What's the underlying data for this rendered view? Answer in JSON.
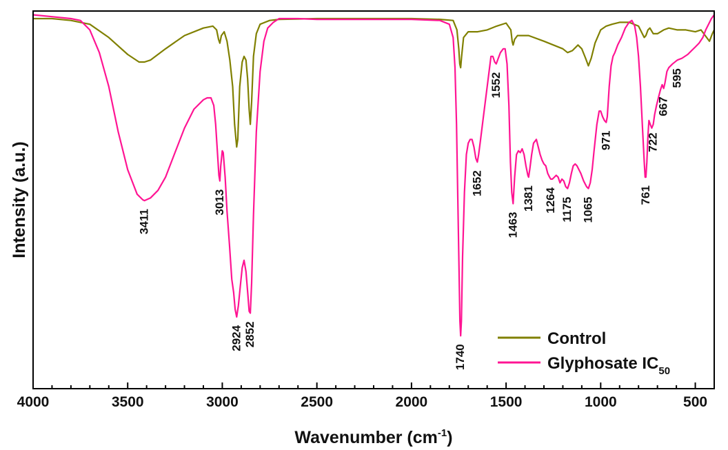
{
  "chart_data": {
    "type": "line",
    "xlabel": "Wavenumber (cm",
    "xlabel_sup": "-1",
    "xlabel_end": ")",
    "ylabel": "Intensity (a.u.)",
    "xlim": [
      4000,
      400
    ],
    "x_reversed": true,
    "ylim": [
      0,
      100
    ],
    "y_ticks_labeled": false,
    "grid": false,
    "legend_position": "bottom-right",
    "x_ticks": [
      "4000",
      "3500",
      "3000",
      "2500",
      "2000",
      "1500",
      "1000",
      "500"
    ],
    "series": [
      {
        "name": "Control",
        "color": "#808000",
        "points": [
          [
            4000,
            98
          ],
          [
            3900,
            98
          ],
          [
            3800,
            97.5
          ],
          [
            3700,
            96.5
          ],
          [
            3600,
            93
          ],
          [
            3500,
            88.5
          ],
          [
            3440,
            86.5
          ],
          [
            3411,
            86.5
          ],
          [
            3380,
            87
          ],
          [
            3300,
            90
          ],
          [
            3200,
            93.5
          ],
          [
            3100,
            95.5
          ],
          [
            3050,
            96
          ],
          [
            3030,
            95
          ],
          [
            3020,
            92.5
          ],
          [
            3013,
            91.5
          ],
          [
            3005,
            93.5
          ],
          [
            2990,
            94.5
          ],
          [
            2975,
            92
          ],
          [
            2960,
            87
          ],
          [
            2945,
            80
          ],
          [
            2935,
            70
          ],
          [
            2924,
            64
          ],
          [
            2918,
            66
          ],
          [
            2908,
            80
          ],
          [
            2895,
            86.5
          ],
          [
            2885,
            88
          ],
          [
            2875,
            87
          ],
          [
            2866,
            82
          ],
          [
            2858,
            74
          ],
          [
            2852,
            70
          ],
          [
            2845,
            76
          ],
          [
            2835,
            88
          ],
          [
            2820,
            94
          ],
          [
            2800,
            96.5
          ],
          [
            2750,
            97.5
          ],
          [
            2700,
            97.8
          ],
          [
            2500,
            98
          ],
          [
            2000,
            98
          ],
          [
            1850,
            97.8
          ],
          [
            1780,
            97.5
          ],
          [
            1760,
            95
          ],
          [
            1750,
            90
          ],
          [
            1745,
            86
          ],
          [
            1740,
            85
          ],
          [
            1735,
            88
          ],
          [
            1725,
            93
          ],
          [
            1700,
            94.5
          ],
          [
            1650,
            94.5
          ],
          [
            1600,
            95
          ],
          [
            1550,
            96
          ],
          [
            1500,
            96.8
          ],
          [
            1475,
            95
          ],
          [
            1468,
            92
          ],
          [
            1463,
            91
          ],
          [
            1455,
            92.5
          ],
          [
            1440,
            93.5
          ],
          [
            1381,
            93.5
          ],
          [
            1300,
            92
          ],
          [
            1250,
            91
          ],
          [
            1200,
            90
          ],
          [
            1175,
            89
          ],
          [
            1150,
            89.5
          ],
          [
            1120,
            91
          ],
          [
            1100,
            90
          ],
          [
            1080,
            87.5
          ],
          [
            1065,
            85.5
          ],
          [
            1050,
            87.5
          ],
          [
            1030,
            91.5
          ],
          [
            1000,
            95
          ],
          [
            971,
            96
          ],
          [
            940,
            96.5
          ],
          [
            900,
            97
          ],
          [
            850,
            97
          ],
          [
            800,
            96
          ],
          [
            780,
            94
          ],
          [
            770,
            93
          ],
          [
            761,
            93.5
          ],
          [
            750,
            95
          ],
          [
            740,
            95.5
          ],
          [
            722,
            94
          ],
          [
            700,
            94
          ],
          [
            667,
            95
          ],
          [
            640,
            95.5
          ],
          [
            595,
            95
          ],
          [
            550,
            95
          ],
          [
            500,
            94.5
          ],
          [
            470,
            95
          ],
          [
            440,
            93
          ],
          [
            425,
            92
          ],
          [
            410,
            94
          ],
          [
            400,
            95
          ]
        ]
      },
      {
        "name": "Glyphosate IC",
        "name_sub": "50",
        "color": "#ff1493",
        "points": [
          [
            4000,
            99
          ],
          [
            3900,
            98.5
          ],
          [
            3800,
            98
          ],
          [
            3750,
            97.5
          ],
          [
            3700,
            95
          ],
          [
            3650,
            89
          ],
          [
            3600,
            80
          ],
          [
            3550,
            68
          ],
          [
            3500,
            58
          ],
          [
            3450,
            51.5
          ],
          [
            3420,
            50
          ],
          [
            3411,
            49.8
          ],
          [
            3380,
            50.5
          ],
          [
            3340,
            52.5
          ],
          [
            3300,
            56
          ],
          [
            3250,
            62.5
          ],
          [
            3200,
            69
          ],
          [
            3150,
            74
          ],
          [
            3100,
            76.5
          ],
          [
            3080,
            77
          ],
          [
            3060,
            77
          ],
          [
            3045,
            75
          ],
          [
            3035,
            70
          ],
          [
            3025,
            62
          ],
          [
            3018,
            56.5
          ],
          [
            3013,
            55
          ],
          [
            3008,
            59
          ],
          [
            3000,
            63
          ],
          [
            2995,
            62.5
          ],
          [
            2985,
            56
          ],
          [
            2975,
            47
          ],
          [
            2962,
            38
          ],
          [
            2950,
            29
          ],
          [
            2940,
            25.5
          ],
          [
            2932,
            21
          ],
          [
            2924,
            19
          ],
          [
            2915,
            22
          ],
          [
            2905,
            27
          ],
          [
            2895,
            32
          ],
          [
            2885,
            34
          ],
          [
            2875,
            31
          ],
          [
            2865,
            25
          ],
          [
            2858,
            20.5
          ],
          [
            2852,
            20
          ],
          [
            2845,
            28
          ],
          [
            2835,
            46
          ],
          [
            2820,
            68
          ],
          [
            2800,
            84
          ],
          [
            2780,
            92
          ],
          [
            2760,
            95.5
          ],
          [
            2730,
            97
          ],
          [
            2700,
            98
          ],
          [
            2600,
            98
          ],
          [
            2500,
            97.8
          ],
          [
            2300,
            97.8
          ],
          [
            2000,
            97.8
          ],
          [
            1850,
            97.5
          ],
          [
            1800,
            96.5
          ],
          [
            1780,
            93
          ],
          [
            1770,
            85
          ],
          [
            1762,
            70
          ],
          [
            1755,
            50
          ],
          [
            1748,
            30
          ],
          [
            1744,
            18
          ],
          [
            1740,
            14
          ],
          [
            1736,
            18
          ],
          [
            1730,
            35
          ],
          [
            1720,
            52
          ],
          [
            1710,
            62
          ],
          [
            1700,
            65
          ],
          [
            1690,
            66
          ],
          [
            1680,
            66
          ],
          [
            1670,
            64
          ],
          [
            1660,
            61
          ],
          [
            1652,
            60
          ],
          [
            1645,
            62
          ],
          [
            1635,
            66
          ],
          [
            1620,
            72
          ],
          [
            1600,
            80
          ],
          [
            1580,
            88
          ],
          [
            1570,
            88
          ],
          [
            1560,
            86.5
          ],
          [
            1552,
            86
          ],
          [
            1545,
            87
          ],
          [
            1530,
            89
          ],
          [
            1515,
            90
          ],
          [
            1505,
            90
          ],
          [
            1495,
            86
          ],
          [
            1485,
            75
          ],
          [
            1477,
            60
          ],
          [
            1470,
            52
          ],
          [
            1463,
            49
          ],
          [
            1455,
            56
          ],
          [
            1445,
            62
          ],
          [
            1435,
            63
          ],
          [
            1425,
            62.5
          ],
          [
            1415,
            63.5
          ],
          [
            1405,
            62
          ],
          [
            1395,
            59
          ],
          [
            1385,
            56.5
          ],
          [
            1381,
            56
          ],
          [
            1375,
            58
          ],
          [
            1365,
            62
          ],
          [
            1355,
            65
          ],
          [
            1340,
            66
          ],
          [
            1330,
            64
          ],
          [
            1320,
            62
          ],
          [
            1310,
            60.5
          ],
          [
            1300,
            59.5
          ],
          [
            1290,
            59
          ],
          [
            1280,
            57
          ],
          [
            1270,
            56
          ],
          [
            1264,
            55.5
          ],
          [
            1255,
            55.5
          ],
          [
            1245,
            56
          ],
          [
            1235,
            56.5
          ],
          [
            1225,
            56
          ],
          [
            1215,
            54.5
          ],
          [
            1205,
            55.5
          ],
          [
            1195,
            55
          ],
          [
            1185,
            53.5
          ],
          [
            1175,
            53
          ],
          [
            1165,
            54.5
          ],
          [
            1155,
            57
          ],
          [
            1145,
            59
          ],
          [
            1135,
            59.5
          ],
          [
            1125,
            59
          ],
          [
            1115,
            58
          ],
          [
            1105,
            57
          ],
          [
            1090,
            55
          ],
          [
            1075,
            53.5
          ],
          [
            1065,
            53
          ],
          [
            1055,
            54.5
          ],
          [
            1045,
            58
          ],
          [
            1035,
            63
          ],
          [
            1020,
            70
          ],
          [
            1008,
            73.5
          ],
          [
            1000,
            73.5
          ],
          [
            990,
            72
          ],
          [
            980,
            71
          ],
          [
            971,
            70.5
          ],
          [
            965,
            72
          ],
          [
            955,
            80
          ],
          [
            945,
            85.5
          ],
          [
            935,
            88
          ],
          [
            925,
            89
          ],
          [
            910,
            91
          ],
          [
            890,
            93
          ],
          [
            870,
            95.5
          ],
          [
            850,
            97
          ],
          [
            835,
            97.5
          ],
          [
            820,
            96
          ],
          [
            810,
            93
          ],
          [
            800,
            88
          ],
          [
            790,
            80
          ],
          [
            780,
            70
          ],
          [
            770,
            60
          ],
          [
            765,
            56
          ],
          [
            761,
            56
          ],
          [
            756,
            60
          ],
          [
            750,
            67
          ],
          [
            745,
            71
          ],
          [
            738,
            70
          ],
          [
            730,
            69
          ],
          [
            722,
            70
          ],
          [
            715,
            72.5
          ],
          [
            705,
            75
          ],
          [
            695,
            77
          ],
          [
            685,
            79
          ],
          [
            675,
            80.5
          ],
          [
            667,
            79.5
          ],
          [
            660,
            81
          ],
          [
            650,
            84
          ],
          [
            640,
            85
          ],
          [
            620,
            86
          ],
          [
            595,
            87
          ],
          [
            570,
            87.5
          ],
          [
            540,
            88.5
          ],
          [
            520,
            89.5
          ],
          [
            500,
            90.5
          ],
          [
            480,
            91.5
          ],
          [
            460,
            93
          ],
          [
            445,
            95
          ],
          [
            430,
            96.5
          ],
          [
            415,
            98
          ],
          [
            400,
            99
          ]
        ]
      }
    ],
    "annotations": [
      {
        "text": "3411",
        "x": 3411,
        "y": 49.8,
        "anchor": "below"
      },
      {
        "text": "3013",
        "x": 3013,
        "y": 55,
        "anchor": "below"
      },
      {
        "text": "2924",
        "x": 2924,
        "y": 19,
        "anchor": "below"
      },
      {
        "text": "2852",
        "x": 2852,
        "y": 20,
        "anchor": "below"
      },
      {
        "text": "1740",
        "x": 1740,
        "y": 14,
        "anchor": "below"
      },
      {
        "text": "1652",
        "x": 1652,
        "y": 60,
        "anchor": "below"
      },
      {
        "text": "1552",
        "x": 1552,
        "y": 86,
        "anchor": "below"
      },
      {
        "text": "1463",
        "x": 1463,
        "y": 49,
        "anchor": "below"
      },
      {
        "text": "1381",
        "x": 1381,
        "y": 56,
        "anchor": "below"
      },
      {
        "text": "1264",
        "x": 1264,
        "y": 55.5,
        "anchor": "below"
      },
      {
        "text": "1175",
        "x": 1175,
        "y": 53,
        "anchor": "below"
      },
      {
        "text": "1065",
        "x": 1065,
        "y": 53,
        "anchor": "below"
      },
      {
        "text": "971",
        "x": 971,
        "y": 70.5,
        "anchor": "below"
      },
      {
        "text": "761",
        "x": 761,
        "y": 56,
        "anchor": "below"
      },
      {
        "text": "722",
        "x": 722,
        "y": 70,
        "anchor": "below"
      },
      {
        "text": "667",
        "x": 667,
        "y": 79.5,
        "anchor": "below"
      },
      {
        "text": "595",
        "x": 595,
        "y": 87,
        "anchor": "below"
      }
    ]
  }
}
